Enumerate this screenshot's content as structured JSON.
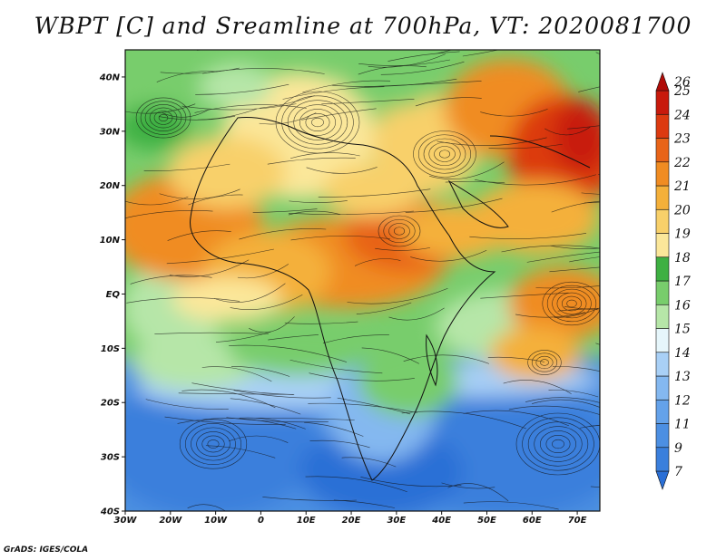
{
  "title": "WBPT [C] and Sreamline at 700hPa, VT: 2020081700",
  "credit": "GrADS: IGES/COLA",
  "map": {
    "variable": "Wet-bulb potential temperature",
    "units": "C",
    "level": "700hPa",
    "overlay": "Streamlines",
    "lon_range": [
      -30,
      75
    ],
    "lat_range": [
      -40,
      45
    ],
    "lat_ticks": [
      {
        "value": 40,
        "label": "40N"
      },
      {
        "value": 30,
        "label": "30N"
      },
      {
        "value": 20,
        "label": "20N"
      },
      {
        "value": 10,
        "label": "10N"
      },
      {
        "value": 0,
        "label": "EQ"
      },
      {
        "value": -10,
        "label": "10S"
      },
      {
        "value": -20,
        "label": "20S"
      },
      {
        "value": -30,
        "label": "30S"
      },
      {
        "value": -40,
        "label": "40S"
      }
    ],
    "lon_ticks": [
      {
        "value": -30,
        "label": "30W"
      },
      {
        "value": -20,
        "label": "20W"
      },
      {
        "value": -10,
        "label": "10W"
      },
      {
        "value": 0,
        "label": "0"
      },
      {
        "value": 10,
        "label": "10E"
      },
      {
        "value": 20,
        "label": "20E"
      },
      {
        "value": 30,
        "label": "30E"
      },
      {
        "value": 40,
        "label": "40E"
      },
      {
        "value": 50,
        "label": "50E"
      },
      {
        "value": 60,
        "label": "60E"
      },
      {
        "value": 70,
        "label": "70E"
      }
    ]
  },
  "colorbar": {
    "levels": [
      "7",
      "9",
      "11",
      "12",
      "13",
      "14",
      "15",
      "16",
      "17",
      "18",
      "19",
      "20",
      "21",
      "22",
      "23",
      "24",
      "25",
      "26"
    ],
    "colors": [
      "#2a6fd6",
      "#3a7fdc",
      "#4c8fe2",
      "#64a2ea",
      "#84b8f0",
      "#a9d0f6",
      "#e6f6fb",
      "#b6e6a8",
      "#78cd6c",
      "#3eb042",
      "#fbe79a",
      "#f8d06a",
      "#f4b03a",
      "#f08c22",
      "#e86418",
      "#dc3a10",
      "#c81a0c",
      "#b00c08"
    ]
  }
}
